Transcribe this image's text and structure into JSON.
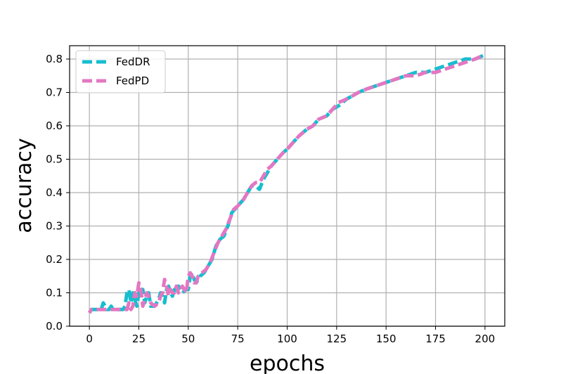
{
  "chart_data": {
    "type": "line",
    "title": "",
    "xlabel": "epochs",
    "ylabel": "accuracy",
    "xlim": [
      -10,
      210
    ],
    "ylim": [
      0,
      0.84
    ],
    "xticks": [
      0,
      25,
      50,
      75,
      100,
      125,
      150,
      175,
      200
    ],
    "yticks": [
      0.0,
      0.1,
      0.2,
      0.3,
      0.4,
      0.5,
      0.6,
      0.7,
      0.8
    ],
    "grid": true,
    "legend_position": "top-left",
    "series": [
      {
        "name": "FedDR",
        "color": "#17becf",
        "x": [
          0,
          1,
          3,
          5,
          6,
          7,
          8,
          9,
          10,
          11,
          12,
          14,
          16,
          17,
          18,
          19,
          20,
          21,
          22,
          23,
          24,
          25,
          26,
          27,
          28,
          29,
          30,
          31,
          33,
          35,
          36,
          37,
          38,
          39,
          40,
          41,
          42,
          43,
          44,
          45,
          47,
          49,
          50,
          51,
          52,
          53,
          54,
          56,
          58,
          60,
          62,
          64,
          66,
          68,
          70,
          72,
          75,
          78,
          80,
          82,
          84,
          86,
          88,
          90,
          92,
          95,
          98,
          100,
          103,
          106,
          110,
          113,
          116,
          120,
          123,
          126,
          130,
          133,
          136,
          140,
          145,
          150,
          155,
          160,
          165,
          170,
          175,
          180,
          185,
          190,
          195,
          199
        ],
        "y": [
          0.04,
          0.05,
          0.05,
          0.05,
          0.05,
          0.07,
          0.06,
          0.05,
          0.05,
          0.06,
          0.05,
          0.05,
          0.05,
          0.05,
          0.06,
          0.1,
          0.11,
          0.07,
          0.1,
          0.08,
          0.06,
          0.1,
          0.09,
          0.11,
          0.07,
          0.09,
          0.1,
          0.06,
          0.06,
          0.08,
          0.1,
          0.09,
          0.07,
          0.11,
          0.12,
          0.1,
          0.09,
          0.11,
          0.1,
          0.12,
          0.1,
          0.11,
          0.11,
          0.15,
          0.16,
          0.14,
          0.13,
          0.15,
          0.16,
          0.18,
          0.2,
          0.24,
          0.26,
          0.27,
          0.3,
          0.34,
          0.36,
          0.38,
          0.4,
          0.42,
          0.42,
          0.41,
          0.44,
          0.46,
          0.48,
          0.5,
          0.52,
          0.53,
          0.55,
          0.57,
          0.59,
          0.6,
          0.62,
          0.63,
          0.65,
          0.66,
          0.68,
          0.69,
          0.7,
          0.71,
          0.72,
          0.73,
          0.74,
          0.75,
          0.76,
          0.76,
          0.77,
          0.78,
          0.79,
          0.8,
          0.8,
          0.81
        ]
      },
      {
        "name": "FedPD",
        "color": "#e377c2",
        "x": [
          0,
          1,
          3,
          5,
          7,
          9,
          11,
          13,
          15,
          17,
          18,
          19,
          20,
          21,
          22,
          23,
          24,
          25,
          26,
          27,
          28,
          29,
          30,
          31,
          33,
          35,
          36,
          37,
          38,
          39,
          40,
          41,
          42,
          43,
          44,
          45,
          46,
          47,
          49,
          50,
          51,
          52,
          53,
          54,
          55,
          57,
          59,
          61,
          63,
          65,
          67,
          69,
          71,
          73,
          75,
          78,
          80,
          82,
          84,
          86,
          88,
          90,
          92,
          95,
          98,
          100,
          103,
          106,
          110,
          113,
          116,
          120,
          123,
          126,
          130,
          133,
          136,
          140,
          145,
          150,
          155,
          160,
          165,
          170,
          175,
          180,
          185,
          190,
          195,
          199
        ],
        "y": [
          0.04,
          0.05,
          0.05,
          0.05,
          0.05,
          0.05,
          0.05,
          0.05,
          0.05,
          0.05,
          0.05,
          0.05,
          0.07,
          0.05,
          0.06,
          0.1,
          0.09,
          0.13,
          0.11,
          0.06,
          0.08,
          0.1,
          0.09,
          0.07,
          0.06,
          0.07,
          0.09,
          0.1,
          0.14,
          0.12,
          0.09,
          0.11,
          0.1,
          0.1,
          0.12,
          0.1,
          0.11,
          0.12,
          0.1,
          0.15,
          0.16,
          0.15,
          0.13,
          0.13,
          0.15,
          0.16,
          0.17,
          0.19,
          0.22,
          0.25,
          0.27,
          0.29,
          0.32,
          0.35,
          0.36,
          0.38,
          0.4,
          0.42,
          0.43,
          0.43,
          0.45,
          0.47,
          0.48,
          0.5,
          0.52,
          0.53,
          0.55,
          0.57,
          0.59,
          0.6,
          0.62,
          0.63,
          0.65,
          0.67,
          0.68,
          0.69,
          0.7,
          0.71,
          0.72,
          0.73,
          0.74,
          0.75,
          0.75,
          0.76,
          0.76,
          0.77,
          0.78,
          0.79,
          0.8,
          0.81
        ]
      }
    ]
  }
}
